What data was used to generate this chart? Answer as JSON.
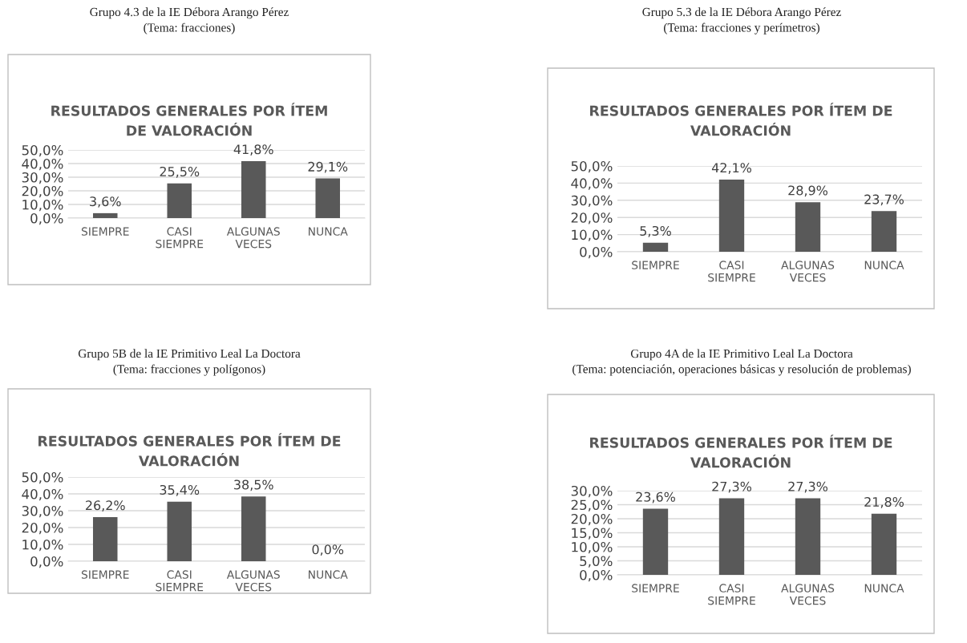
{
  "chart_data": [
    {
      "type": "bar",
      "subtitle": "Grupo 4.3 de la IE Débora Arango Pérez\n(Tema: fracciones)",
      "title": "RESULTADOS GENERALES POR ÍTEM\nDE VALORACIÓN",
      "categories": [
        "SIEMPRE",
        "CASI\nSIEMPRE",
        "ALGUNAS\nVECES",
        "NUNCA"
      ],
      "values": [
        3.6,
        25.5,
        41.8,
        29.1
      ],
      "value_labels": [
        "3,6%",
        "25,5%",
        "41,8%",
        "29,1%"
      ],
      "color": "#595959",
      "ylim": [
        0,
        50
      ],
      "yticks": [
        {
          "value": 0,
          "label": "0,0%"
        },
        {
          "value": 10,
          "label": "10,0%"
        },
        {
          "value": 20,
          "label": "20,0%"
        },
        {
          "value": 30,
          "label": "30,0%"
        },
        {
          "value": 40,
          "label": "40,0%"
        },
        {
          "value": 50,
          "label": "50,0%"
        }
      ],
      "grid": "y"
    },
    {
      "type": "bar",
      "subtitle": "Grupo 5.3 de la IE Débora Arango Pérez\n(Tema: fracciones y perímetros)",
      "title": "RESULTADOS GENERALES POR ÍTEM DE\nVALORACIÓN",
      "categories": [
        "SIEMPRE",
        "CASI\nSIEMPRE",
        "ALGUNAS\nVECES",
        "NUNCA"
      ],
      "values": [
        5.3,
        42.1,
        28.9,
        23.7
      ],
      "value_labels": [
        "5,3%",
        "42,1%",
        "28,9%",
        "23,7%"
      ],
      "color": "#595959",
      "ylim": [
        0,
        50
      ],
      "yticks": [
        {
          "value": 0,
          "label": "0,0%"
        },
        {
          "value": 10,
          "label": "10,0%"
        },
        {
          "value": 20,
          "label": "20,0%"
        },
        {
          "value": 30,
          "label": "30,0%"
        },
        {
          "value": 40,
          "label": "40,0%"
        },
        {
          "value": 50,
          "label": "50,0%"
        }
      ],
      "grid": "y"
    },
    {
      "type": "bar",
      "subtitle": "Grupo 5B de la IE Primitivo Leal La Doctora\n(Tema: fracciones y polígonos)",
      "title": "RESULTADOS GENERALES POR ÍTEM DE\nVALORACIÓN",
      "categories": [
        "SIEMPRE",
        "CASI\nSIEMPRE",
        "ALGUNAS\nVECES",
        "NUNCA"
      ],
      "values": [
        26.2,
        35.4,
        38.5,
        0.0
      ],
      "value_labels": [
        "26,2%",
        "35,4%",
        "38,5%",
        "0,0%"
      ],
      "color": "#595959",
      "ylim": [
        0,
        50
      ],
      "yticks": [
        {
          "value": 0,
          "label": "0,0%"
        },
        {
          "value": 10,
          "label": "10,0%"
        },
        {
          "value": 20,
          "label": "20,0%"
        },
        {
          "value": 30,
          "label": "30,0%"
        },
        {
          "value": 40,
          "label": "40,0%"
        },
        {
          "value": 50,
          "label": "50,0%"
        }
      ],
      "grid": "y"
    },
    {
      "type": "bar",
      "subtitle": "Grupo 4A de la IE Primitivo Leal La Doctora\n(Tema: potenciación, operaciones básicas y resolución de problemas)",
      "title": "RESULTADOS GENERALES POR ÍTEM DE\nVALORACIÓN",
      "categories": [
        "SIEMPRE",
        "CASI\nSIEMPRE",
        "ALGUNAS\nVECES",
        "NUNCA"
      ],
      "values": [
        23.6,
        27.3,
        27.3,
        21.8
      ],
      "value_labels": [
        "23,6%",
        "27,3%",
        "27,3%",
        "21,8%"
      ],
      "color": "#595959",
      "ylim": [
        0,
        30
      ],
      "yticks": [
        {
          "value": 0,
          "label": "0,0%"
        },
        {
          "value": 5,
          "label": "5,0%"
        },
        {
          "value": 10,
          "label": "10,0%"
        },
        {
          "value": 15,
          "label": "15,0%"
        },
        {
          "value": 20,
          "label": "20,0%"
        },
        {
          "value": 25,
          "label": "25,0%"
        },
        {
          "value": 30,
          "label": "30,0%"
        }
      ],
      "grid": "y"
    }
  ]
}
